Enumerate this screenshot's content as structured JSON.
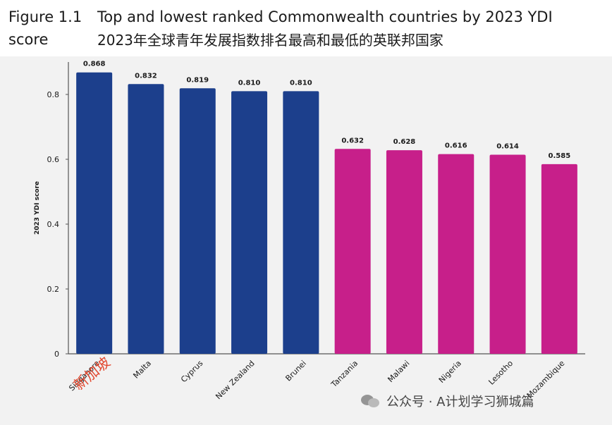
{
  "header": {
    "figure_label": "Figure 1.1\nscore",
    "title_en": "Top and lowest ranked Commonwealth countries by 2023 YDI",
    "title_zh": "2023年全球青年发展指数排名最高和最低的英联邦国家"
  },
  "chart_data": {
    "type": "bar",
    "categories": [
      "Singapore",
      "Malta",
      "Cyprus",
      "New Zealand",
      "Brunei",
      "Tanzania",
      "Malawi",
      "Nigeria",
      "Lesotho",
      "Mozambique"
    ],
    "values": [
      0.868,
      0.832,
      0.819,
      0.81,
      0.81,
      0.632,
      0.628,
      0.616,
      0.614,
      0.585
    ],
    "value_labels": [
      "0.868",
      "0.832",
      "0.819",
      "0.810",
      "0.810",
      "0.632",
      "0.628",
      "0.616",
      "0.614",
      "0.585"
    ],
    "groups": [
      "top",
      "top",
      "top",
      "top",
      "top",
      "lowest",
      "lowest",
      "lowest",
      "lowest",
      "lowest"
    ],
    "colors": {
      "top": "#1c3f8c",
      "lowest": "#c71f8a",
      "axis": "#555555",
      "text": "#1a1a1a"
    },
    "ylabel": "2023 YDI score",
    "ylim": [
      0,
      0.9
    ],
    "yticks": [
      0,
      0.2,
      0.4,
      0.6,
      0.8
    ],
    "ytick_labels": [
      "0",
      "0.2",
      "0.4",
      "0.6",
      "0.8"
    ],
    "grid": false
  },
  "annotation": {
    "text": "新加坡",
    "color": "#e2482f"
  },
  "watermark": {
    "text": "公众号 · A计划学习狮城篇"
  }
}
